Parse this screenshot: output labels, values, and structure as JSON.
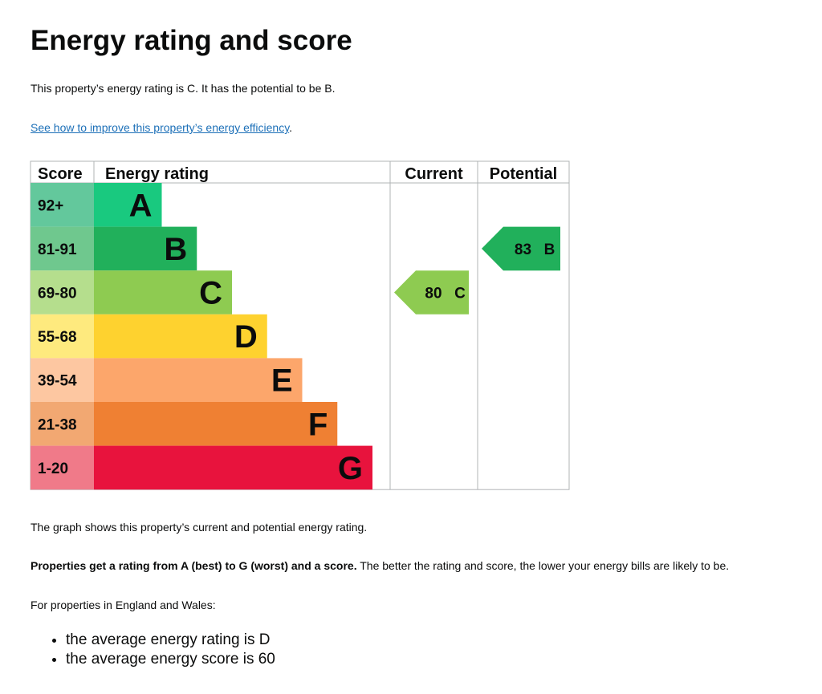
{
  "title": "Energy rating and score",
  "intro": "This property’s energy rating is C. It has the potential to be B.",
  "improve_link": {
    "text": "See how to improve this property’s energy efficiency",
    "suffix": "."
  },
  "chart_data": {
    "type": "bar",
    "headers": {
      "score": "Score",
      "rating": "Energy rating",
      "current": "Current",
      "potential": "Potential"
    },
    "bands": [
      {
        "letter": "A",
        "range": "92+",
        "color": "#19c97f",
        "label_bg": "#63c89c"
      },
      {
        "letter": "B",
        "range": "81-91",
        "color": "#21b05b",
        "label_bg": "#6fc88e"
      },
      {
        "letter": "C",
        "range": "69-80",
        "color": "#8ecb51",
        "label_bg": "#b5de8d"
      },
      {
        "letter": "D",
        "range": "55-68",
        "color": "#fed22f",
        "label_bg": "#feea7e"
      },
      {
        "letter": "E",
        "range": "39-54",
        "color": "#fca66b",
        "label_bg": "#fdc7a1"
      },
      {
        "letter": "F",
        "range": "21-38",
        "color": "#ef8033",
        "label_bg": "#f2a872"
      },
      {
        "letter": "G",
        "range": "1-20",
        "color": "#e8133d",
        "label_bg": "#f07a89"
      }
    ],
    "current": {
      "score": 80,
      "letter": "C"
    },
    "potential": {
      "score": 83,
      "letter": "B"
    }
  },
  "graph_note": "The graph shows this property’s current and potential energy rating.",
  "ratings_bold": "Properties get a rating from A (best) to G (worst) and a score.",
  "ratings_rest": " The better the rating and score, the lower your energy bills are likely to be.",
  "region_intro": "For properties in England and Wales:",
  "averages": [
    "the average energy rating is D",
    "the average energy score is 60"
  ]
}
